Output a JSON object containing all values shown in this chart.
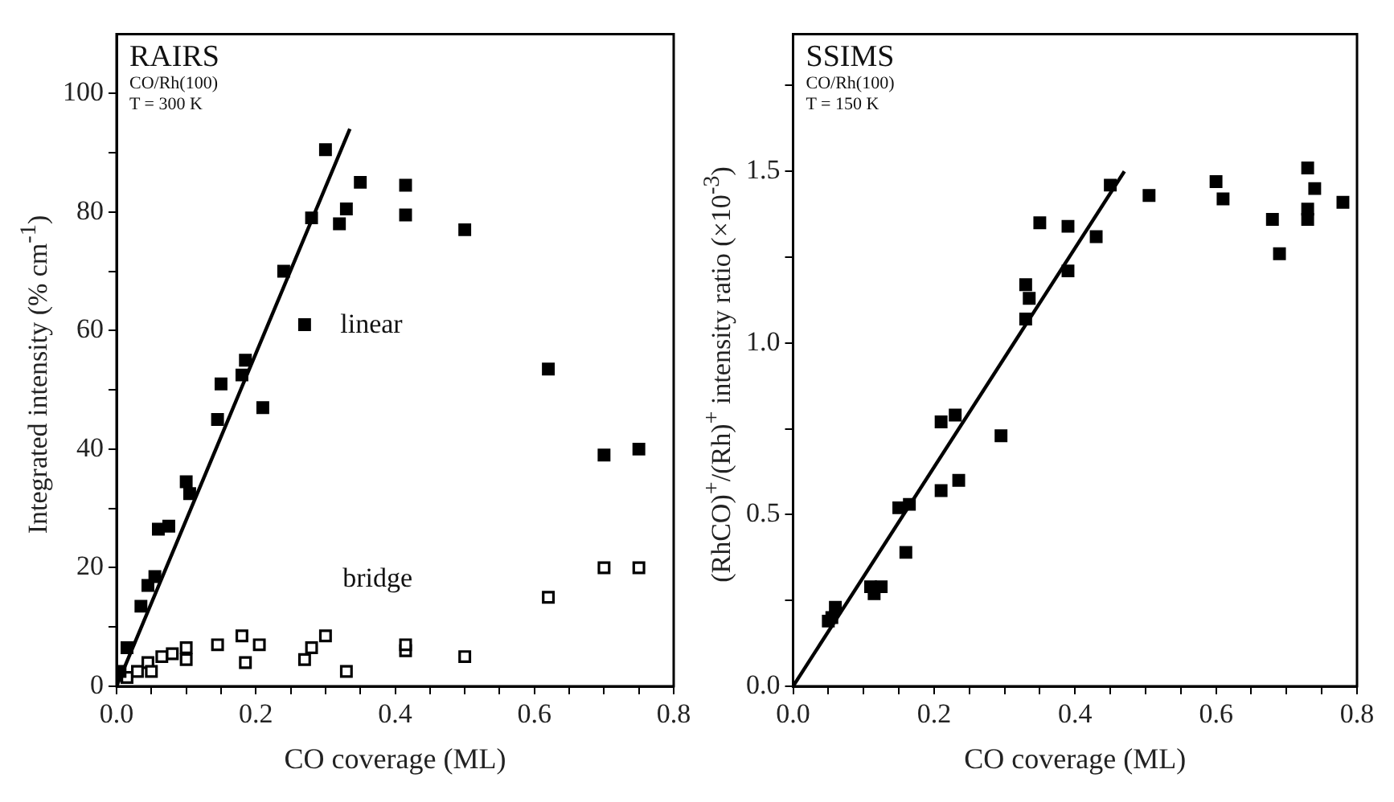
{
  "chart_data": [
    {
      "type": "scatter",
      "title": "RAIRS",
      "xlabel": "CO coverage (ML)",
      "ylabel": "Integrated intensity (% cm$^{-1}$)",
      "annotations": [
        "CO/Rh(100)",
        "T = 300 K"
      ],
      "xlim": [
        0,
        0.8
      ],
      "ylim": [
        0,
        110
      ],
      "xticks": [
        {
          "value": 0,
          "label": "0.0"
        },
        {
          "value": 0.05,
          "label": null
        },
        {
          "value": 0.1,
          "label": null
        },
        {
          "value": 0.15,
          "label": null
        },
        {
          "value": 0.2,
          "label": "0.2"
        },
        {
          "value": 0.25,
          "label": null
        },
        {
          "value": 0.3,
          "label": null
        },
        {
          "value": 0.35,
          "label": null
        },
        {
          "value": 0.4,
          "label": "0.4"
        },
        {
          "value": 0.45,
          "label": null
        },
        {
          "value": 0.5,
          "label": null
        },
        {
          "value": 0.55,
          "label": null
        },
        {
          "value": 0.6,
          "label": "0.6"
        },
        {
          "value": 0.65,
          "label": null
        },
        {
          "value": 0.7,
          "label": null
        },
        {
          "value": 0.75,
          "label": null
        },
        {
          "value": 0.8,
          "label": "0.8"
        }
      ],
      "yticks": [
        0,
        {
          "value": 10,
          "label": null
        },
        20,
        {
          "value": 30,
          "label": null
        },
        40,
        {
          "value": 50,
          "label": null
        },
        60,
        {
          "value": 70,
          "label": null
        },
        80,
        {
          "value": 90,
          "label": null
        },
        100
      ],
      "grid": false,
      "legend": false,
      "marker": "square",
      "series": [
        {
          "name": "linear",
          "color": "#000000",
          "x": [
            0.005,
            0.015,
            0.035,
            0.045,
            0.055,
            0.06,
            0.075,
            0.1,
            0.105,
            0.145,
            0.15,
            0.18,
            0.185,
            0.21,
            0.24,
            0.27,
            0.28,
            0.3,
            0.32,
            0.33,
            0.35,
            0.415,
            0.415,
            0.5,
            0.62,
            0.7,
            0.75
          ],
          "values": [
            2.5,
            6.5,
            13.5,
            17,
            18.5,
            26.5,
            27,
            34.5,
            32.5,
            45,
            51,
            52.5,
            55,
            47,
            70,
            61,
            79,
            90.5,
            78,
            80.5,
            85,
            84.5,
            79.5,
            77,
            53.5,
            39,
            40
          ]
        },
        {
          "name": "bridge",
          "color": "#ffffff",
          "x": [
            0.015,
            0.03,
            0.045,
            0.05,
            0.065,
            0.08,
            0.1,
            0.1,
            0.145,
            0.18,
            0.185,
            0.205,
            0.27,
            0.28,
            0.3,
            0.33,
            0.415,
            0.415,
            0.5,
            0.62,
            0.7,
            0.75
          ],
          "values": [
            1.5,
            2.5,
            4,
            2.5,
            5,
            5.5,
            4.5,
            6.5,
            7,
            8.5,
            4,
            7,
            4.5,
            6.5,
            8.5,
            2.5,
            6,
            7,
            5,
            15,
            20,
            20
          ]
        },
        {
          "type": "line",
          "color": "#000000",
          "marker": "none",
          "x": [
            0,
            0.335
          ],
          "values": [
            0,
            94
          ]
        }
      ]
    },
    {
      "type": "scatter",
      "title": "SSIMS",
      "xlabel": "CO coverage (ML)",
      "ylabel": "(RhCO)$^{+}$/(Rh)$^{+}$ intensity ratio (×10$^{-3}$)",
      "annotations": [
        "CO/Rh(100)",
        "T = 150 K"
      ],
      "xlim": [
        0,
        0.8
      ],
      "ylim": [
        0,
        1.9
      ],
      "xticks": [
        {
          "value": 0,
          "label": "0.0"
        },
        {
          "value": 0.05,
          "label": null
        },
        {
          "value": 0.1,
          "label": null
        },
        {
          "value": 0.15,
          "label": null
        },
        {
          "value": 0.2,
          "label": "0.2"
        },
        {
          "value": 0.25,
          "label": null
        },
        {
          "value": 0.3,
          "label": null
        },
        {
          "value": 0.35,
          "label": null
        },
        {
          "value": 0.4,
          "label": "0.4"
        },
        {
          "value": 0.45,
          "label": null
        },
        {
          "value": 0.5,
          "label": null
        },
        {
          "value": 0.55,
          "label": null
        },
        {
          "value": 0.6,
          "label": "0.6"
        },
        {
          "value": 0.65,
          "label": null
        },
        {
          "value": 0.7,
          "label": null
        },
        {
          "value": 0.75,
          "label": null
        },
        {
          "value": 0.8,
          "label": "0.8"
        }
      ],
      "yticks": [
        {
          "value": 0,
          "label": "0.0"
        },
        {
          "value": 0.25,
          "label": null
        },
        {
          "value": 0.5,
          "label": "0.5"
        },
        {
          "value": 0.75,
          "label": null
        },
        {
          "value": 1,
          "label": "1.0"
        },
        {
          "value": 1.25,
          "label": null
        },
        {
          "value": 1.5,
          "label": "1.5"
        },
        {
          "value": 1.75,
          "label": null
        }
      ],
      "grid": false,
      "legend": false,
      "marker": "square",
      "series": [
        {
          "color": "#000000",
          "x": [
            0.05,
            0.055,
            0.06,
            0.11,
            0.115,
            0.125,
            0.15,
            0.165,
            0.16,
            0.21,
            0.21,
            0.23,
            0.235,
            0.295,
            0.33,
            0.335,
            0.33,
            0.35,
            0.39,
            0.39,
            0.43,
            0.45,
            0.505,
            0.6,
            0.61,
            0.68,
            0.69,
            0.73,
            0.73,
            0.73,
            0.74,
            0.78
          ],
          "values": [
            0.19,
            0.2,
            0.23,
            0.29,
            0.27,
            0.29,
            0.52,
            0.53,
            0.39,
            0.57,
            0.77,
            0.79,
            0.6,
            0.73,
            1.07,
            1.13,
            1.17,
            1.35,
            1.34,
            1.21,
            1.31,
            1.46,
            1.43,
            1.47,
            1.42,
            1.36,
            1.26,
            1.51,
            1.39,
            1.36,
            1.45,
            1.41
          ]
        },
        {
          "type": "line",
          "color": "#000000",
          "marker": "none",
          "x": [
            0,
            0.47
          ],
          "values": [
            0,
            1.5
          ]
        }
      ]
    }
  ]
}
